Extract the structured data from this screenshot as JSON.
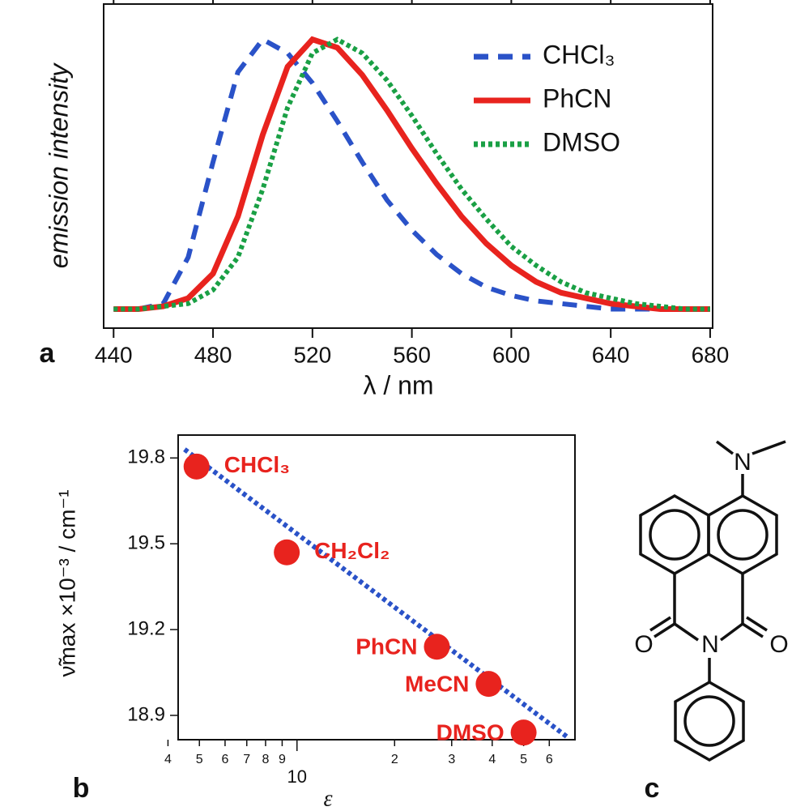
{
  "chart_data": [
    {
      "type": "line",
      "panel_label": "a",
      "x_label": "λ / nm",
      "y_label": "emission intensity",
      "x": [
        440,
        450,
        460,
        470,
        480,
        490,
        500,
        510,
        520,
        530,
        540,
        550,
        560,
        570,
        580,
        590,
        600,
        610,
        620,
        630,
        640,
        650,
        660,
        670,
        680
      ],
      "series": [
        {
          "name": "CHCl₃",
          "color": "#2a52c8",
          "dash": "dashed",
          "values": [
            0.01,
            0.01,
            0.03,
            0.2,
            0.55,
            0.88,
            1.0,
            0.95,
            0.84,
            0.7,
            0.55,
            0.41,
            0.3,
            0.21,
            0.14,
            0.09,
            0.06,
            0.04,
            0.03,
            0.02,
            0.01,
            0.01,
            0.01,
            0.01,
            0.01
          ]
        },
        {
          "name": "PhCN",
          "color": "#e8231e",
          "dash": "solid",
          "values": [
            0.01,
            0.01,
            0.02,
            0.05,
            0.14,
            0.35,
            0.65,
            0.9,
            1.0,
            0.97,
            0.87,
            0.74,
            0.6,
            0.47,
            0.35,
            0.25,
            0.17,
            0.11,
            0.07,
            0.05,
            0.03,
            0.02,
            0.01,
            0.01,
            0.01
          ]
        },
        {
          "name": "DMSO",
          "color": "#1aa045",
          "dash": "dotted",
          "values": [
            0.01,
            0.01,
            0.02,
            0.03,
            0.08,
            0.2,
            0.45,
            0.75,
            0.95,
            1.0,
            0.95,
            0.85,
            0.72,
            0.58,
            0.45,
            0.34,
            0.24,
            0.17,
            0.11,
            0.07,
            0.05,
            0.03,
            0.02,
            0.01,
            0.01
          ]
        }
      ],
      "xlim": [
        436,
        681
      ],
      "xticks": [
        440,
        480,
        520,
        560,
        600,
        640,
        680
      ],
      "ylim": [
        -0.06,
        1.13
      ],
      "legend": "upper-right"
    },
    {
      "type": "scatter",
      "panel_label": "b",
      "x_label": "ε",
      "y_label": "ν̃max ×10⁻³ / cm⁻¹",
      "xscale": "log",
      "color": "#e8231e",
      "x": [
        4.9,
        9.3,
        27,
        39,
        50
      ],
      "values": [
        19.77,
        19.47,
        19.14,
        19.01,
        18.84
      ],
      "labels": [
        "CHCl₃",
        "CH₂Cl₂",
        "PhCN",
        "MeCN",
        "DMSO"
      ],
      "fit": {
        "color": "#2a52c8",
        "x": [
          4.5,
          69
        ],
        "y": [
          19.83,
          18.82
        ]
      },
      "xlim": [
        4.3,
        72
      ],
      "ylim": [
        18.815,
        19.88
      ],
      "xticks": [
        4,
        5,
        6,
        7,
        8,
        9,
        10,
        {
          "value": 20,
          "label": "2"
        },
        {
          "value": 30,
          "label": "3"
        },
        {
          "value": 40,
          "label": "4"
        },
        {
          "value": 50,
          "label": "5"
        },
        {
          "value": 60,
          "label": "6"
        }
      ],
      "yticks": [
        18.9,
        19.2,
        19.5,
        19.8
      ]
    }
  ],
  "structure": {
    "panel_label": "c",
    "atoms": [
      "N",
      "O",
      "N",
      "O"
    ]
  }
}
